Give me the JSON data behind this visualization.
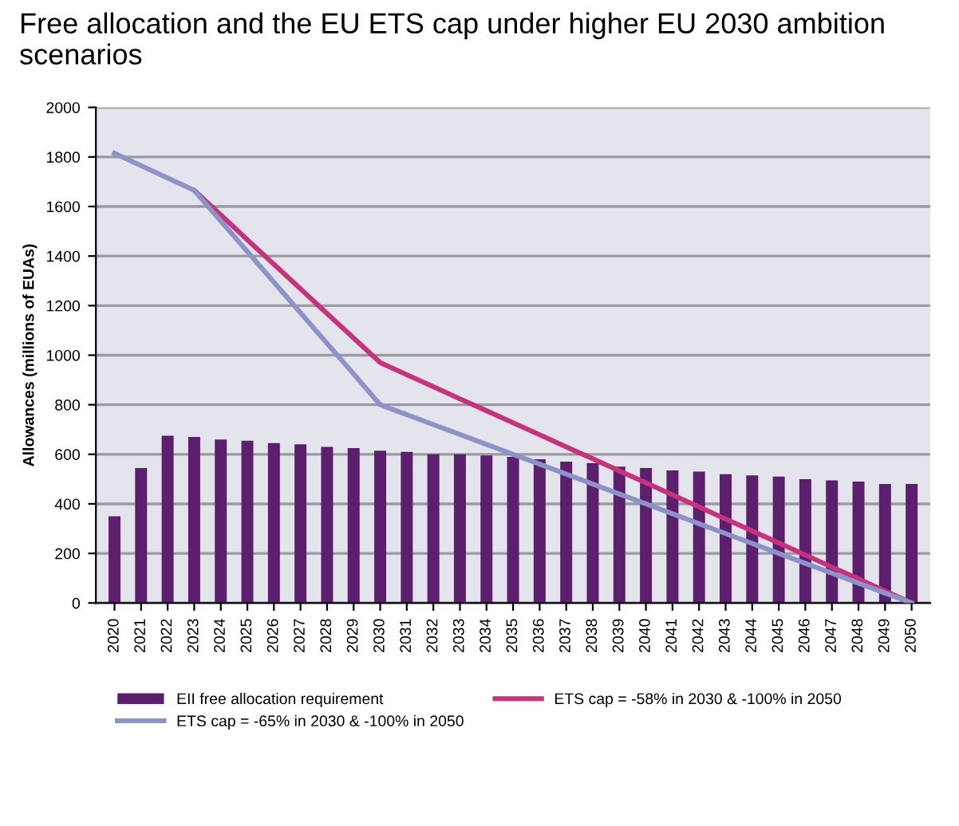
{
  "chart_data": {
    "type": "bar",
    "title": "Free allocation and the EU ETS cap under higher EU 2030 ambition scenarios",
    "ylabel": "Allowances (millions of EUAs)",
    "categories": [
      "2020",
      "2021",
      "2022",
      "2023",
      "2024",
      "2025",
      "2026",
      "2027",
      "2028",
      "2029",
      "2030",
      "2031",
      "2032",
      "2033",
      "2034",
      "2035",
      "2036",
      "2037",
      "2038",
      "2039",
      "2040",
      "2041",
      "2042",
      "2043",
      "2044",
      "2045",
      "2046",
      "2047",
      "2048",
      "2049",
      "2050"
    ],
    "series": [
      {
        "name": "EII free allocation requirement",
        "color": "#5c1f6e",
        "values": [
          350,
          545,
          675,
          670,
          660,
          655,
          645,
          640,
          630,
          625,
          615,
          610,
          600,
          600,
          595,
          590,
          580,
          570,
          565,
          550,
          545,
          535,
          530,
          520,
          515,
          510,
          500,
          495,
          490,
          480,
          480
        ]
      },
      {
        "name": "ETS cap = -58% in 2030 & -100% in 2050",
        "color": "#c8327a",
        "type": "line",
        "values": [
          null,
          null,
          null,
          1665,
          1566,
          1466,
          1367,
          1268,
          1168,
          1069,
          970,
          921,
          873,
          824,
          776,
          727,
          679,
          630,
          582,
          533,
          485,
          436,
          388,
          339,
          291,
          242,
          194,
          145,
          97,
          48,
          0
        ]
      },
      {
        "name": "ETS cap = -65% in 2030 & -100% in 2050",
        "color": "#8c93c8",
        "type": "line",
        "values": [
          1815,
          1765,
          1715,
          1665,
          1541,
          1418,
          1294,
          1171,
          1047,
          924,
          800,
          760,
          720,
          680,
          640,
          600,
          560,
          520,
          480,
          440,
          400,
          360,
          320,
          280,
          240,
          200,
          160,
          120,
          80,
          40,
          0
        ]
      }
    ],
    "ylim": [
      0,
      2000
    ],
    "yticks": [
      0,
      200,
      400,
      600,
      800,
      1000,
      1200,
      1400,
      1600,
      1800,
      2000
    ],
    "grid": "y",
    "legend": "bottom",
    "marker": "none",
    "line_style": "solid"
  }
}
